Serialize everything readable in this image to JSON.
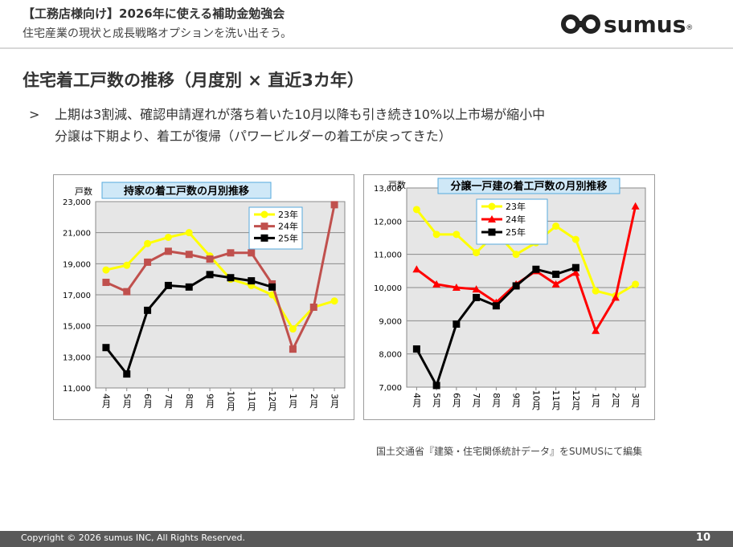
{
  "header": {
    "title": "【工務店様向け】2026年に使える補助金勉強会",
    "subtitle": "住宅産業の現状と成長戦略オプションを洗い出そう。"
  },
  "logo": {
    "text": "sumus",
    "reg": "®"
  },
  "section": {
    "title": "住宅着工戸数の推移（月度別 × 直近3カ年）",
    "bullet_mark": ">",
    "bullet_line1": "上期は3割減、確認申請遅れが落ち着いた10月以降も引き続き10%以上市場が縮小中",
    "bullet_line2": "分譲は下期より、着工が復帰（パワービルダーの着工が戻ってきた）"
  },
  "source": "国土交通省『建築・住宅関係統計データ』をSUMUSにて編集",
  "footer": {
    "copyright": "Copyright © 2026 sumus INC, All Rights Reserved.",
    "page": "10"
  },
  "colors": {
    "y23": "#ffff00",
    "y24_left": "#c0504d",
    "y24_right": "#ff0000",
    "y25": "#000000",
    "plot_bg": "#e6e6e6",
    "title_box_bg": "#cfe8f7",
    "title_box_border": "#55aadd"
  },
  "chart_data": [
    {
      "type": "line",
      "title": "持家の着工戸数の月別推移",
      "ylabel": "戸数",
      "ylim": [
        11000,
        23000
      ],
      "yticks": [
        "11,000",
        "13,000",
        "15,000",
        "17,000",
        "19,000",
        "21,000",
        "23,000"
      ],
      "ytick_values": [
        11000,
        13000,
        15000,
        17000,
        19000,
        21000,
        23000
      ],
      "categories": [
        "4月",
        "5月",
        "6月",
        "7月",
        "8月",
        "9月",
        "10月",
        "11月",
        "12月",
        "1月",
        "2月",
        "3月"
      ],
      "grid": true,
      "legend": "top-right",
      "series": [
        {
          "name": "23年",
          "color_key": "y23",
          "marker": "circle",
          "values": [
            18600,
            18900,
            20300,
            20700,
            21000,
            19500,
            18000,
            17600,
            17000,
            14800,
            16200,
            16600
          ]
        },
        {
          "name": "24年",
          "color_key": "y24_left",
          "marker": "square",
          "values": [
            17800,
            17200,
            19100,
            19800,
            19600,
            19300,
            19700,
            19700,
            17700,
            13500,
            16200,
            22800
          ]
        },
        {
          "name": "25年",
          "color_key": "y25",
          "marker": "square",
          "values": [
            13600,
            11900,
            16000,
            17600,
            17500,
            18300,
            18100,
            17900,
            17500,
            null,
            null,
            null
          ]
        }
      ]
    },
    {
      "type": "line",
      "title": "分譲一戸建の着工戸数の月別推移",
      "ylabel": "戸数",
      "ylim": [
        7000,
        13000
      ],
      "yticks": [
        "7,000",
        "8,000",
        "9,000",
        "10,000",
        "11,000",
        "12,000",
        "13,000"
      ],
      "ytick_values": [
        7000,
        8000,
        9000,
        10000,
        11000,
        12000,
        13000
      ],
      "categories": [
        "4月",
        "5月",
        "6月",
        "7月",
        "8月",
        "9月",
        "10月",
        "11月",
        "12月",
        "1月",
        "2月",
        "3月"
      ],
      "grid": true,
      "legend": "top-left",
      "series": [
        {
          "name": "23年",
          "color_key": "y23",
          "marker": "circle",
          "values": [
            12350,
            11600,
            11600,
            11050,
            11650,
            11000,
            11350,
            11850,
            11450,
            9900,
            9750,
            10100
          ]
        },
        {
          "name": "24年",
          "color_key": "y24_right",
          "marker": "triangle",
          "values": [
            10550,
            10100,
            10000,
            9950,
            9550,
            10100,
            10500,
            10100,
            10450,
            8700,
            9700,
            12450
          ]
        },
        {
          "name": "25年",
          "color_key": "y25",
          "marker": "square",
          "values": [
            8150,
            7050,
            8900,
            9700,
            9450,
            10050,
            10550,
            10400,
            10600,
            null,
            null,
            null
          ]
        }
      ]
    }
  ]
}
